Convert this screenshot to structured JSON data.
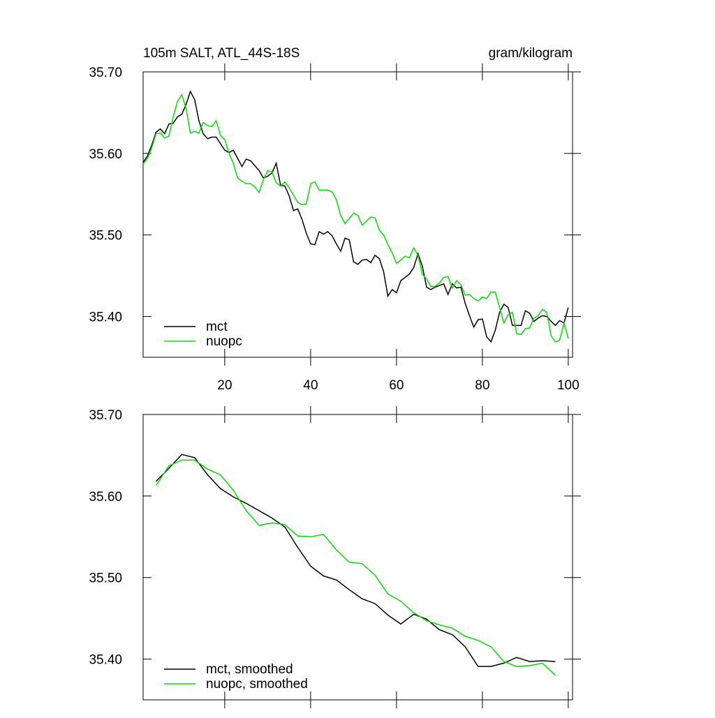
{
  "chart_data": [
    {
      "type": "line",
      "title": "105m SALT, ATL_44S-18S",
      "units": "gram/kilogram",
      "x": [
        1,
        2,
        3,
        4,
        5,
        6,
        7,
        8,
        9,
        10,
        11,
        12,
        13,
        14,
        15,
        16,
        17,
        18,
        19,
        20,
        21,
        22,
        23,
        24,
        25,
        26,
        27,
        28,
        29,
        30,
        31,
        32,
        33,
        34,
        35,
        36,
        37,
        38,
        39,
        40,
        41,
        42,
        43,
        44,
        45,
        46,
        47,
        48,
        49,
        50,
        51,
        52,
        53,
        54,
        55,
        56,
        57,
        58,
        59,
        60,
        61,
        62,
        63,
        64,
        65,
        66,
        67,
        68,
        69,
        70,
        71,
        72,
        73,
        74,
        75,
        76,
        77,
        78,
        79,
        80,
        81,
        82,
        83,
        84,
        85,
        86,
        87,
        88,
        89,
        90,
        91,
        92,
        93,
        94,
        95,
        96,
        97,
        98,
        99,
        100
      ],
      "series": [
        {
          "name": "mct",
          "color": "#000000",
          "values": [
            35.589,
            35.597,
            35.61,
            35.626,
            35.63,
            35.624,
            35.636,
            35.637,
            35.645,
            35.648,
            35.66,
            35.676,
            35.666,
            35.64,
            35.624,
            35.618,
            35.62,
            35.62,
            35.612,
            35.604,
            35.601,
            35.604,
            35.594,
            35.584,
            35.593,
            35.591,
            35.585,
            35.579,
            35.57,
            35.572,
            35.576,
            35.588,
            35.561,
            35.56,
            35.548,
            35.53,
            35.532,
            35.519,
            35.502,
            35.489,
            35.488,
            35.504,
            35.501,
            35.504,
            35.499,
            35.489,
            35.48,
            35.496,
            35.494,
            35.467,
            35.464,
            35.469,
            35.47,
            35.466,
            35.475,
            35.471,
            35.455,
            35.425,
            35.433,
            35.429,
            35.444,
            35.448,
            35.452,
            35.46,
            35.477,
            35.462,
            35.436,
            35.433,
            35.436,
            35.438,
            35.44,
            35.427,
            35.44,
            35.435,
            35.436,
            35.416,
            35.401,
            35.387,
            35.396,
            35.397,
            35.375,
            35.369,
            35.383,
            35.405,
            35.415,
            35.411,
            35.389,
            35.389,
            35.389,
            35.407,
            35.404,
            35.394,
            35.398,
            35.401,
            35.4,
            35.394,
            35.389,
            35.395,
            35.392,
            35.411
          ]
        },
        {
          "name": "nuopc",
          "color": "#00e000",
          "values": [
            35.587,
            35.594,
            35.607,
            35.624,
            35.625,
            35.619,
            35.621,
            35.645,
            35.664,
            35.672,
            35.655,
            35.625,
            35.627,
            35.625,
            35.638,
            35.634,
            35.633,
            35.64,
            35.622,
            35.617,
            35.6,
            35.588,
            35.57,
            35.566,
            35.563,
            35.563,
            35.559,
            35.552,
            35.568,
            35.579,
            35.577,
            35.564,
            35.56,
            35.565,
            35.558,
            35.549,
            35.54,
            35.537,
            35.538,
            35.563,
            35.565,
            35.555,
            35.555,
            35.555,
            35.553,
            35.543,
            35.524,
            35.514,
            35.52,
            35.527,
            35.524,
            35.512,
            35.517,
            35.522,
            35.521,
            35.506,
            35.5,
            35.488,
            35.478,
            35.465,
            35.469,
            35.474,
            35.472,
            35.484,
            35.475,
            35.452,
            35.446,
            35.437,
            35.437,
            35.441,
            35.448,
            35.449,
            35.435,
            35.444,
            35.439,
            35.426,
            35.427,
            35.422,
            35.419,
            35.424,
            35.422,
            35.43,
            35.43,
            35.411,
            35.392,
            35.402,
            35.405,
            35.379,
            35.378,
            35.385,
            35.386,
            35.398,
            35.401,
            35.409,
            35.405,
            35.376,
            35.369,
            35.371,
            35.392,
            35.373
          ]
        }
      ],
      "xlim": [
        1,
        101
      ],
      "xticks": [
        20,
        40,
        60,
        80,
        100
      ],
      "xtick_labels": true,
      "ylim": [
        35.35,
        35.7
      ],
      "yticks": [
        {
          "value": 35.4,
          "label": "35.40"
        },
        {
          "value": 35.5,
          "label": "35.50"
        },
        {
          "value": 35.6,
          "label": "35.60"
        },
        {
          "value": 35.7,
          "label": "35.70"
        }
      ],
      "legend": "lower left"
    },
    {
      "type": "line",
      "x": [
        4,
        7,
        10,
        13,
        16,
        19,
        22,
        25,
        28,
        31,
        34,
        37,
        40,
        43,
        46,
        49,
        52,
        55,
        58,
        61,
        64,
        67,
        70,
        73,
        76,
        79,
        82,
        85,
        88,
        91,
        94,
        97
      ],
      "series": [
        {
          "name": "mct, smoothed",
          "color": "#000000",
          "values": [
            35.618,
            35.634,
            35.651,
            35.647,
            35.626,
            35.609,
            35.599,
            35.591,
            35.582,
            35.573,
            35.562,
            35.537,
            35.514,
            35.502,
            35.497,
            35.485,
            35.474,
            35.468,
            35.454,
            35.443,
            35.455,
            35.449,
            35.436,
            35.43,
            35.415,
            35.391,
            35.391,
            35.395,
            35.402,
            35.397,
            35.398,
            35.397
          ]
        },
        {
          "name": "nuopc, smoothed",
          "color": "#00e000",
          "values": [
            35.613,
            35.637,
            35.644,
            35.644,
            35.633,
            35.626,
            35.607,
            35.582,
            35.564,
            35.567,
            35.565,
            35.551,
            35.55,
            35.553,
            35.534,
            35.519,
            35.517,
            35.503,
            35.48,
            35.471,
            35.457,
            35.447,
            35.442,
            35.438,
            35.428,
            35.423,
            35.415,
            35.397,
            35.391,
            35.392,
            35.395,
            35.38
          ]
        }
      ],
      "xlim": [
        1,
        101
      ],
      "xticks": [
        20,
        40,
        60,
        80,
        100
      ],
      "xtick_labels": false,
      "ylim": [
        35.35,
        35.7
      ],
      "yticks": [
        {
          "value": 35.4,
          "label": "35.40"
        },
        {
          "value": 35.5,
          "label": "35.50"
        },
        {
          "value": 35.6,
          "label": "35.60"
        },
        {
          "value": 35.7,
          "label": "35.70"
        }
      ],
      "legend": "lower left"
    }
  ]
}
